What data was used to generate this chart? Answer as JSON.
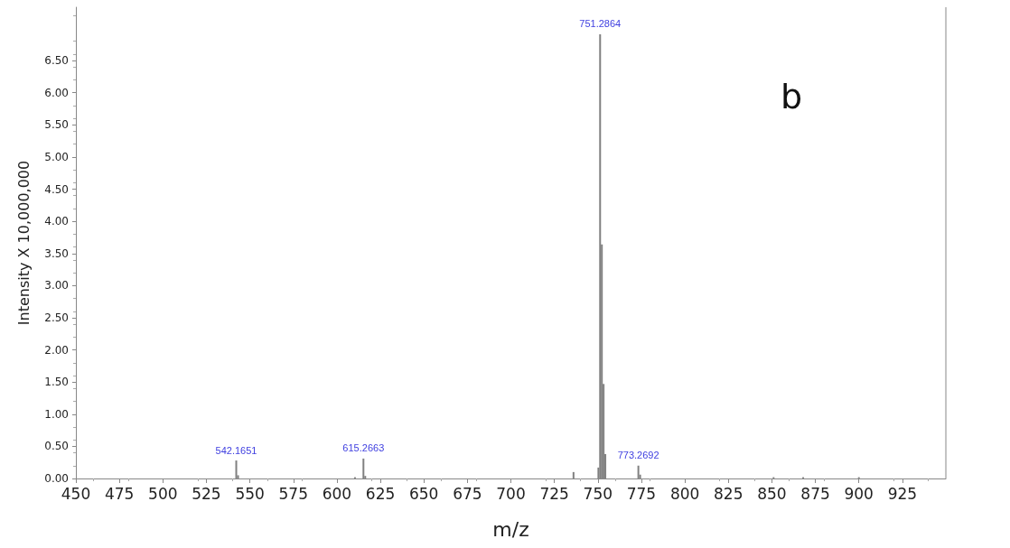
{
  "chart_data": {
    "type": "bar",
    "xlabel": "m/z",
    "ylabel": "Intensity X 10,000,000",
    "x": [
      542.1651,
      543.2,
      610.4,
      615.2663,
      616.3,
      736,
      750.3,
      751.2864,
      752.29,
      753.29,
      754.29,
      773.2692,
      774.3,
      851,
      868,
      900
    ],
    "values": [
      0.28,
      0.05,
      0.02,
      0.31,
      0.04,
      0.1,
      0.17,
      6.91,
      3.64,
      1.47,
      0.38,
      0.2,
      0.06,
      0.02,
      0.02,
      0.02
    ],
    "color": "#808080",
    "xlim": [
      450,
      950
    ],
    "xticks": [
      450,
      475,
      500,
      525,
      550,
      575,
      600,
      625,
      650,
      675,
      700,
      725,
      750,
      775,
      800,
      825,
      850,
      875,
      900,
      925
    ],
    "ylim": [
      0,
      7.33
    ],
    "yticks": [
      {
        "value": 0,
        "label": "0.00"
      },
      {
        "value": 0.5,
        "label": "0.50"
      },
      {
        "value": 1,
        "label": "1.00"
      },
      {
        "value": 1.5,
        "label": "1.50"
      },
      {
        "value": 2,
        "label": "2.00"
      },
      {
        "value": 2.5,
        "label": "2.50"
      },
      {
        "value": 3,
        "label": "3.00"
      },
      {
        "value": 3.5,
        "label": "3.50"
      },
      {
        "value": 4,
        "label": "4.00"
      },
      {
        "value": 4.5,
        "label": "4.50"
      },
      {
        "value": 5,
        "label": "5.00"
      },
      {
        "value": 5.5,
        "label": "5.50"
      },
      {
        "value": 6,
        "label": "6.00"
      },
      {
        "value": 6.5,
        "label": "6.50"
      }
    ],
    "annotations": [
      {
        "text": "542.1651",
        "x": 542.1651,
        "y": 0.28
      },
      {
        "text": "615.2663",
        "x": 615.2663,
        "y": 0.31
      },
      {
        "text": "751.2864",
        "x": 751.2864,
        "y": 6.91
      },
      {
        "text": "773.2692",
        "x": 773.2692,
        "y": 0.2
      },
      "b"
    ],
    "grid": false
  }
}
